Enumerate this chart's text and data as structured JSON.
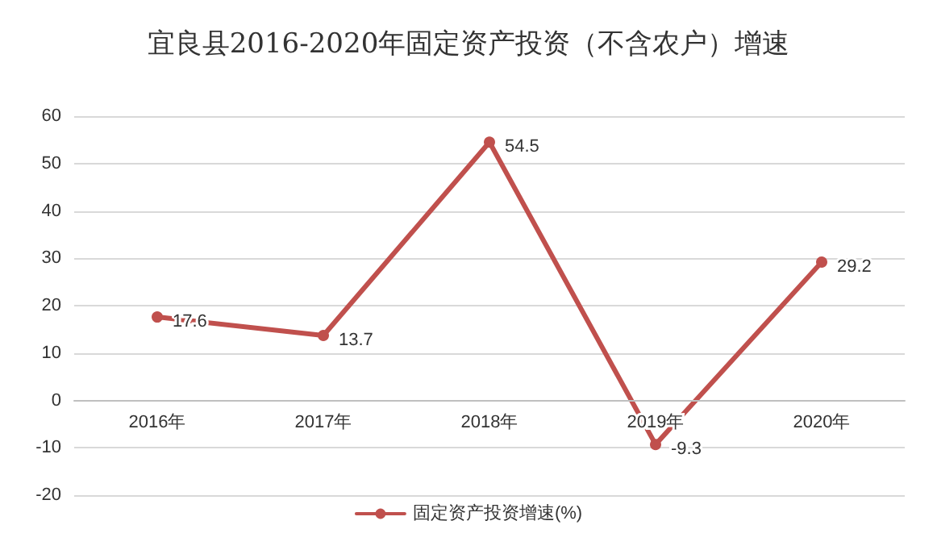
{
  "chart_data": {
    "type": "line",
    "title": "宜良县2016-2020年固定资产投资（不含农户）增速",
    "categories": [
      "2016年",
      "2017年",
      "2018年",
      "2019年",
      "2020年"
    ],
    "series": [
      {
        "name": "固定资产投资增速(%)",
        "color": "#c0504d",
        "values": [
          17.6,
          13.7,
          54.5,
          -9.3,
          29.2
        ]
      }
    ],
    "ylim": [
      -20,
      60
    ],
    "yticks": [
      -20,
      -10,
      0,
      10,
      20,
      30,
      40,
      50,
      60
    ],
    "grid": "y",
    "legend": "bottom",
    "marker": "circle",
    "line_style": "solid",
    "data_labels": true
  }
}
